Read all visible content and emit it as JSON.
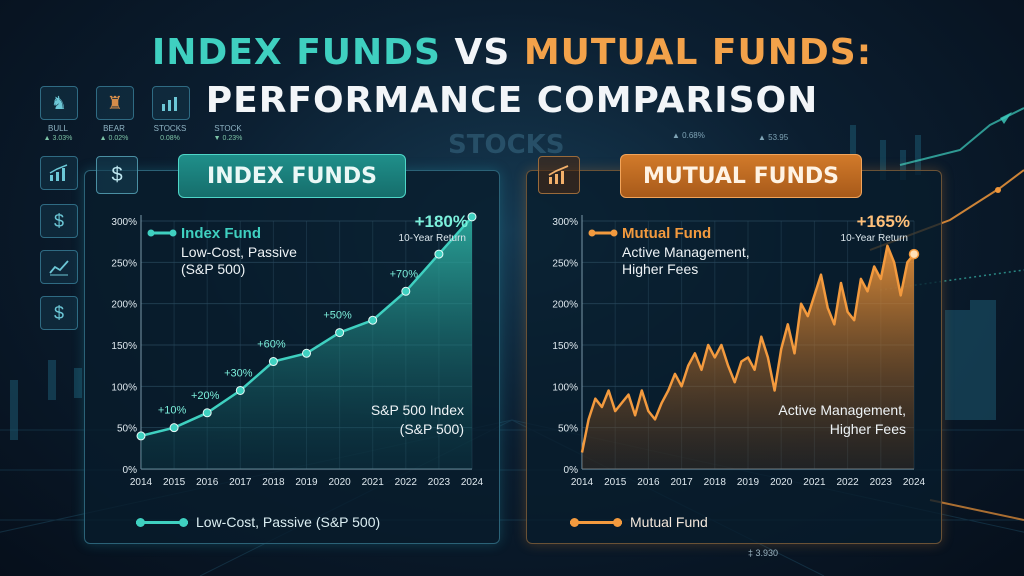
{
  "title": {
    "part1_a": "INDEX FUNDS",
    "part1_b": "VS",
    "part1_c": "MUTUAL FUNDS:",
    "part2": "PERFORMANCE COMPARISON"
  },
  "background": {
    "ghost_text": "STOCKS",
    "mini_icons": [
      {
        "icon": "bull-icon",
        "label": "BULL",
        "value": "▲ 3.03%"
      },
      {
        "icon": "bear-icon",
        "label": "BEAR",
        "value": "▲ 0.02%"
      },
      {
        "icon": "stocks-chart-icon",
        "label": "STOCKS",
        "value": "0.08%"
      },
      {
        "icon": "stock-icon",
        "label": "STOCK",
        "value": "▼ 0.23%"
      }
    ],
    "tickers": [
      "▲ 0.68%",
      "▲ 53.95"
    ],
    "bottom_number": "‡ 3.930"
  },
  "colors": {
    "index_accent": "#3fd0c0",
    "mutual_accent": "#f39a3e"
  },
  "chart_data": [
    {
      "type": "area",
      "panel_title": "INDEX FUNDS",
      "years": [
        2014,
        2015,
        2016,
        2017,
        2018,
        2019,
        2020,
        2021,
        2022,
        2023,
        2024
      ],
      "series": [
        {
          "name": "Index Fund",
          "values": [
            40,
            50,
            68,
            95,
            130,
            140,
            165,
            180,
            215,
            260,
            305
          ]
        }
      ],
      "point_labels": [
        {
          "year": 2015,
          "text": "+10%"
        },
        {
          "year": 2016,
          "text": "+20%"
        },
        {
          "year": 2017,
          "text": "+30%"
        },
        {
          "year": 2018,
          "text": "+60%"
        },
        {
          "year": 2020,
          "text": "+50%"
        },
        {
          "year": 2022,
          "text": "+70%"
        }
      ],
      "yticks": [
        "0%",
        "50%",
        "100%",
        "150%",
        "200%",
        "250%",
        "300%"
      ],
      "ylim": [
        0,
        300
      ],
      "legend_title": "Index Fund",
      "legend_subtitle": [
        "Low-Cost, Passive",
        "(S&P 500)"
      ],
      "return_value": "+180%",
      "return_label": "10-Year Return",
      "annotation": [
        "S&P 500 Index",
        "(S&P 500)"
      ],
      "bottom_legend": "Low-Cost, Passive (S&P 500)"
    },
    {
      "type": "area",
      "panel_title": "MUTUAL FUNDS",
      "years": [
        2014,
        2015,
        2016,
        2017,
        2018,
        2019,
        2020,
        2021,
        2022,
        2023,
        2024
      ],
      "series": [
        {
          "name": "Mutual Fund",
          "values": [
            50,
            80,
            70,
            125,
            135,
            130,
            175,
            230,
            185,
            265,
            260
          ]
        }
      ],
      "x_fine": [
        2014.0,
        2014.2,
        2014.4,
        2014.6,
        2014.8,
        2015.0,
        2015.2,
        2015.4,
        2015.6,
        2015.8,
        2016.0,
        2016.2,
        2016.4,
        2016.6,
        2016.8,
        2017.0,
        2017.2,
        2017.4,
        2017.6,
        2017.8,
        2018.0,
        2018.2,
        2018.4,
        2018.6,
        2018.8,
        2019.0,
        2019.2,
        2019.4,
        2019.6,
        2019.8,
        2020.0,
        2020.2,
        2020.4,
        2020.6,
        2020.8,
        2021.0,
        2021.2,
        2021.4,
        2021.6,
        2021.8,
        2022.0,
        2022.2,
        2022.4,
        2022.6,
        2022.8,
        2023.0,
        2023.2,
        2023.4,
        2023.6,
        2023.8,
        2024.0
      ],
      "y_fine": [
        20,
        60,
        85,
        75,
        95,
        70,
        80,
        90,
        65,
        95,
        70,
        60,
        80,
        95,
        115,
        100,
        125,
        140,
        120,
        150,
        135,
        150,
        125,
        105,
        130,
        135,
        120,
        160,
        135,
        95,
        145,
        175,
        140,
        200,
        185,
        210,
        235,
        195,
        175,
        225,
        190,
        180,
        230,
        215,
        245,
        230,
        270,
        250,
        210,
        250,
        260
      ],
      "yticks": [
        "0%",
        "50%",
        "100%",
        "150%",
        "200%",
        "250%",
        "300%"
      ],
      "ylim": [
        0,
        300
      ],
      "legend_title": "Mutual Fund",
      "legend_subtitle": [
        "Active Management,",
        "Higher Fees"
      ],
      "return_value": "+165%",
      "return_label": "10-Year Return",
      "annotation": [
        "Active Management,",
        "Higher Fees"
      ],
      "bottom_legend": "Mutual Fund"
    }
  ]
}
